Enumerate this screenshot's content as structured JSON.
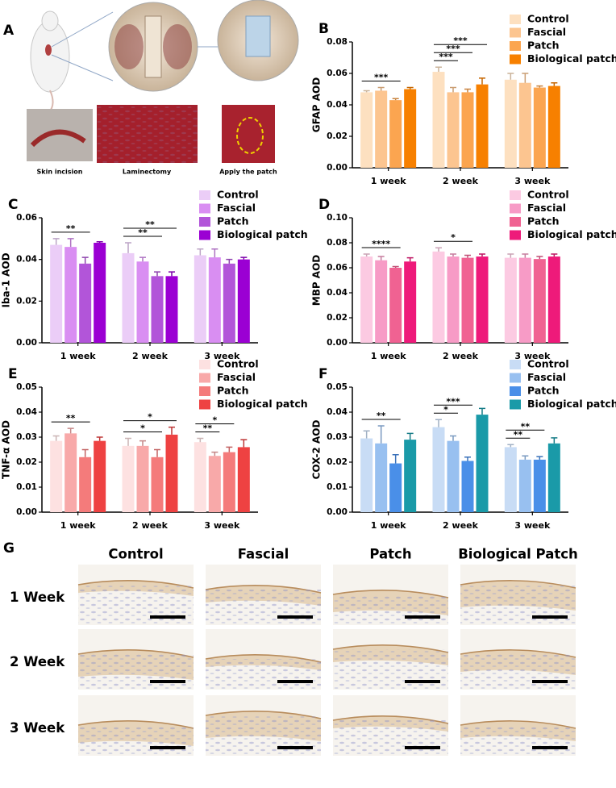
{
  "panel_a": {
    "letter": "A",
    "labels": [
      "Skin incision",
      "Laminectomy",
      "Apply the patch"
    ]
  },
  "chart_data": [
    {
      "type": "bar",
      "panel": "B",
      "ylabel": "GFAP AOD",
      "categories": [
        "1 week",
        "2 week",
        "3 week"
      ],
      "ylim": [
        0,
        0.08
      ],
      "yticks": [
        {
          "value": 0,
          "label": "0.00"
        },
        {
          "value": 0.02,
          "label": "0.02"
        },
        {
          "value": 0.04,
          "label": "0.04"
        },
        {
          "value": 0.06,
          "label": "0.06"
        },
        {
          "value": 0.08,
          "label": "0.08"
        }
      ],
      "series": [
        {
          "name": "Control",
          "color": "#fde0c0",
          "values": [
            0.048,
            0.061,
            0.056
          ],
          "errors": [
            0.001,
            0.003,
            0.004
          ]
        },
        {
          "name": "Fascial",
          "color": "#fcc590",
          "values": [
            0.049,
            0.048,
            0.054
          ],
          "errors": [
            0.002,
            0.003,
            0.006
          ]
        },
        {
          "name": "Patch",
          "color": "#fba550",
          "values": [
            0.043,
            0.048,
            0.051
          ],
          "errors": [
            0.001,
            0.002,
            0.001
          ]
        },
        {
          "name": "Biological patch",
          "color": "#f78000",
          "values": [
            0.05,
            0.053,
            0.052
          ],
          "errors": [
            0.001,
            0.004,
            0.002
          ]
        }
      ],
      "significance": [
        {
          "category": "1 week",
          "from": "Control",
          "to": "Patch",
          "label": "***"
        },
        {
          "category": "2 week",
          "from": "Control",
          "to": "Fascial",
          "label": "***"
        },
        {
          "category": "2 week",
          "from": "Control",
          "to": "Patch",
          "label": "***"
        },
        {
          "category": "2 week",
          "from": "Control",
          "to": "Biological patch",
          "label": "***"
        }
      ]
    },
    {
      "type": "bar",
      "panel": "C",
      "ylabel": "Iba-1 AOD",
      "categories": [
        "1 week",
        "2 week",
        "3 week"
      ],
      "ylim": [
        0,
        0.06
      ],
      "yticks": [
        {
          "value": 0,
          "label": "0.00"
        },
        {
          "value": 0.02,
          "label": "0.02"
        },
        {
          "value": 0.04,
          "label": "0.04"
        },
        {
          "value": 0.06,
          "label": "0.06"
        }
      ],
      "series": [
        {
          "name": "Control",
          "color": "#ebcdf7",
          "values": [
            0.047,
            0.043,
            0.042
          ],
          "errors": [
            0.003,
            0.005,
            0.003
          ]
        },
        {
          "name": "Fascial",
          "color": "#d98ef2",
          "values": [
            0.046,
            0.039,
            0.041
          ],
          "errors": [
            0.004,
            0.002,
            0.004
          ]
        },
        {
          "name": "Patch",
          "color": "#b255d9",
          "values": [
            0.038,
            0.032,
            0.038
          ],
          "errors": [
            0.003,
            0.002,
            0.002
          ]
        },
        {
          "name": "Biological patch",
          "color": "#9b00d3",
          "values": [
            0.048,
            0.032,
            0.04
          ],
          "errors": [
            0.0005,
            0.002,
            0.001
          ]
        }
      ],
      "significance": [
        {
          "category": "1 week",
          "from": "Control",
          "to": "Patch",
          "label": "**"
        },
        {
          "category": "2 week",
          "from": "Control",
          "to": "Patch",
          "label": "**"
        },
        {
          "category": "2 week",
          "from": "Control",
          "to": "Biological patch",
          "label": "**"
        }
      ]
    },
    {
      "type": "bar",
      "panel": "D",
      "ylabel": "MBP AOD",
      "categories": [
        "1 week",
        "2 week",
        "3 week"
      ],
      "ylim": [
        0,
        0.1
      ],
      "yticks": [
        {
          "value": 0,
          "label": "0.00"
        },
        {
          "value": 0.02,
          "label": "0.02"
        },
        {
          "value": 0.04,
          "label": "0.04"
        },
        {
          "value": 0.06,
          "label": "0.06"
        },
        {
          "value": 0.08,
          "label": "0.08"
        },
        {
          "value": 0.1,
          "label": "0.10"
        }
      ],
      "series": [
        {
          "name": "Control",
          "color": "#fccae2",
          "values": [
            0.069,
            0.073,
            0.068
          ],
          "errors": [
            0.002,
            0.003,
            0.003
          ]
        },
        {
          "name": "Fascial",
          "color": "#f79bc6",
          "values": [
            0.066,
            0.069,
            0.068
          ],
          "errors": [
            0.003,
            0.002,
            0.003
          ]
        },
        {
          "name": "Patch",
          "color": "#f06292",
          "values": [
            0.06,
            0.068,
            0.067
          ],
          "errors": [
            0.001,
            0.002,
            0.002
          ]
        },
        {
          "name": "Biological patch",
          "color": "#ee1a7a",
          "values": [
            0.065,
            0.069,
            0.069
          ],
          "errors": [
            0.003,
            0.002,
            0.002
          ]
        }
      ],
      "significance": [
        {
          "category": "1 week",
          "from": "Control",
          "to": "Patch",
          "label": "****"
        },
        {
          "category": "2 week",
          "from": "Control",
          "to": "Patch",
          "label": "*"
        }
      ]
    },
    {
      "type": "bar",
      "panel": "E",
      "ylabel": "TNF-α AOD",
      "categories": [
        "1 week",
        "2 week",
        "3 week"
      ],
      "ylim": [
        0,
        0.05
      ],
      "yticks": [
        {
          "value": 0,
          "label": "0.00"
        },
        {
          "value": 0.01,
          "label": "0.01"
        },
        {
          "value": 0.02,
          "label": "0.02"
        },
        {
          "value": 0.03,
          "label": "0.03"
        },
        {
          "value": 0.04,
          "label": "0.04"
        },
        {
          "value": 0.05,
          "label": "0.05"
        }
      ],
      "series": [
        {
          "name": "Control",
          "color": "#fde1e1",
          "values": [
            0.0285,
            0.0265,
            0.028
          ],
          "errors": [
            0.002,
            0.003,
            0.0015
          ]
        },
        {
          "name": "Fascial",
          "color": "#f8a9a9",
          "values": [
            0.0315,
            0.0265,
            0.0225
          ],
          "errors": [
            0.002,
            0.002,
            0.0015
          ]
        },
        {
          "name": "Patch",
          "color": "#f47b7b",
          "values": [
            0.022,
            0.022,
            0.024
          ],
          "errors": [
            0.003,
            0.003,
            0.002
          ]
        },
        {
          "name": "Biological patch",
          "color": "#ee4242",
          "values": [
            0.0285,
            0.031,
            0.026
          ],
          "errors": [
            0.0015,
            0.003,
            0.003
          ]
        }
      ],
      "significance": [
        {
          "category": "1 week",
          "from": "Control",
          "to": "Patch",
          "label": "**"
        },
        {
          "category": "2 week",
          "from": "Control",
          "to": "Patch",
          "label": "*"
        },
        {
          "category": "2 week",
          "from": "Control",
          "to": "Biological patch",
          "label": "*"
        },
        {
          "category": "3 week",
          "from": "Control",
          "to": "Fascial",
          "label": "**"
        },
        {
          "category": "3 week",
          "from": "Control",
          "to": "Patch",
          "label": "*"
        }
      ]
    },
    {
      "type": "bar",
      "panel": "F",
      "ylabel": "COX-2 AOD",
      "categories": [
        "1 week",
        "2 week",
        "3 week"
      ],
      "ylim": [
        0,
        0.05
      ],
      "yticks": [
        {
          "value": 0,
          "label": "0.00"
        },
        {
          "value": 0.01,
          "label": "0.01"
        },
        {
          "value": 0.02,
          "label": "0.02"
        },
        {
          "value": 0.03,
          "label": "0.03"
        },
        {
          "value": 0.04,
          "label": "0.04"
        },
        {
          "value": 0.05,
          "label": "0.05"
        }
      ],
      "series": [
        {
          "name": "Control",
          "color": "#c8dcf5",
          "values": [
            0.0295,
            0.034,
            0.026
          ],
          "errors": [
            0.003,
            0.003,
            0.001
          ]
        },
        {
          "name": "Fascial",
          "color": "#98c0f0",
          "values": [
            0.0275,
            0.0285,
            0.021
          ],
          "errors": [
            0.007,
            0.002,
            0.0015
          ]
        },
        {
          "name": "Patch",
          "color": "#4a8fe8",
          "values": [
            0.0195,
            0.0205,
            0.021
          ],
          "errors": [
            0.0035,
            0.0015,
            0.0012
          ]
        },
        {
          "name": "Biological patch",
          "color": "#1a9aa8",
          "values": [
            0.029,
            0.039,
            0.0275
          ],
          "errors": [
            0.0025,
            0.0025,
            0.0022
          ]
        }
      ],
      "significance": [
        {
          "category": "1 week",
          "from": "Control",
          "to": "Patch",
          "label": "**"
        },
        {
          "category": "2 week",
          "from": "Control",
          "to": "Fascial",
          "label": "*"
        },
        {
          "category": "2 week",
          "from": "Control",
          "to": "Patch",
          "label": "***"
        },
        {
          "category": "3 week",
          "from": "Control",
          "to": "Fascial",
          "label": "**"
        },
        {
          "category": "3 week",
          "from": "Control",
          "to": "Patch",
          "label": "**"
        }
      ]
    }
  ],
  "panel_g": {
    "letter": "G",
    "columns": [
      "Control",
      "Fascial",
      "Patch",
      "Biological Patch"
    ],
    "rows": [
      "1 Week",
      "2 Week",
      "3 Week"
    ]
  }
}
